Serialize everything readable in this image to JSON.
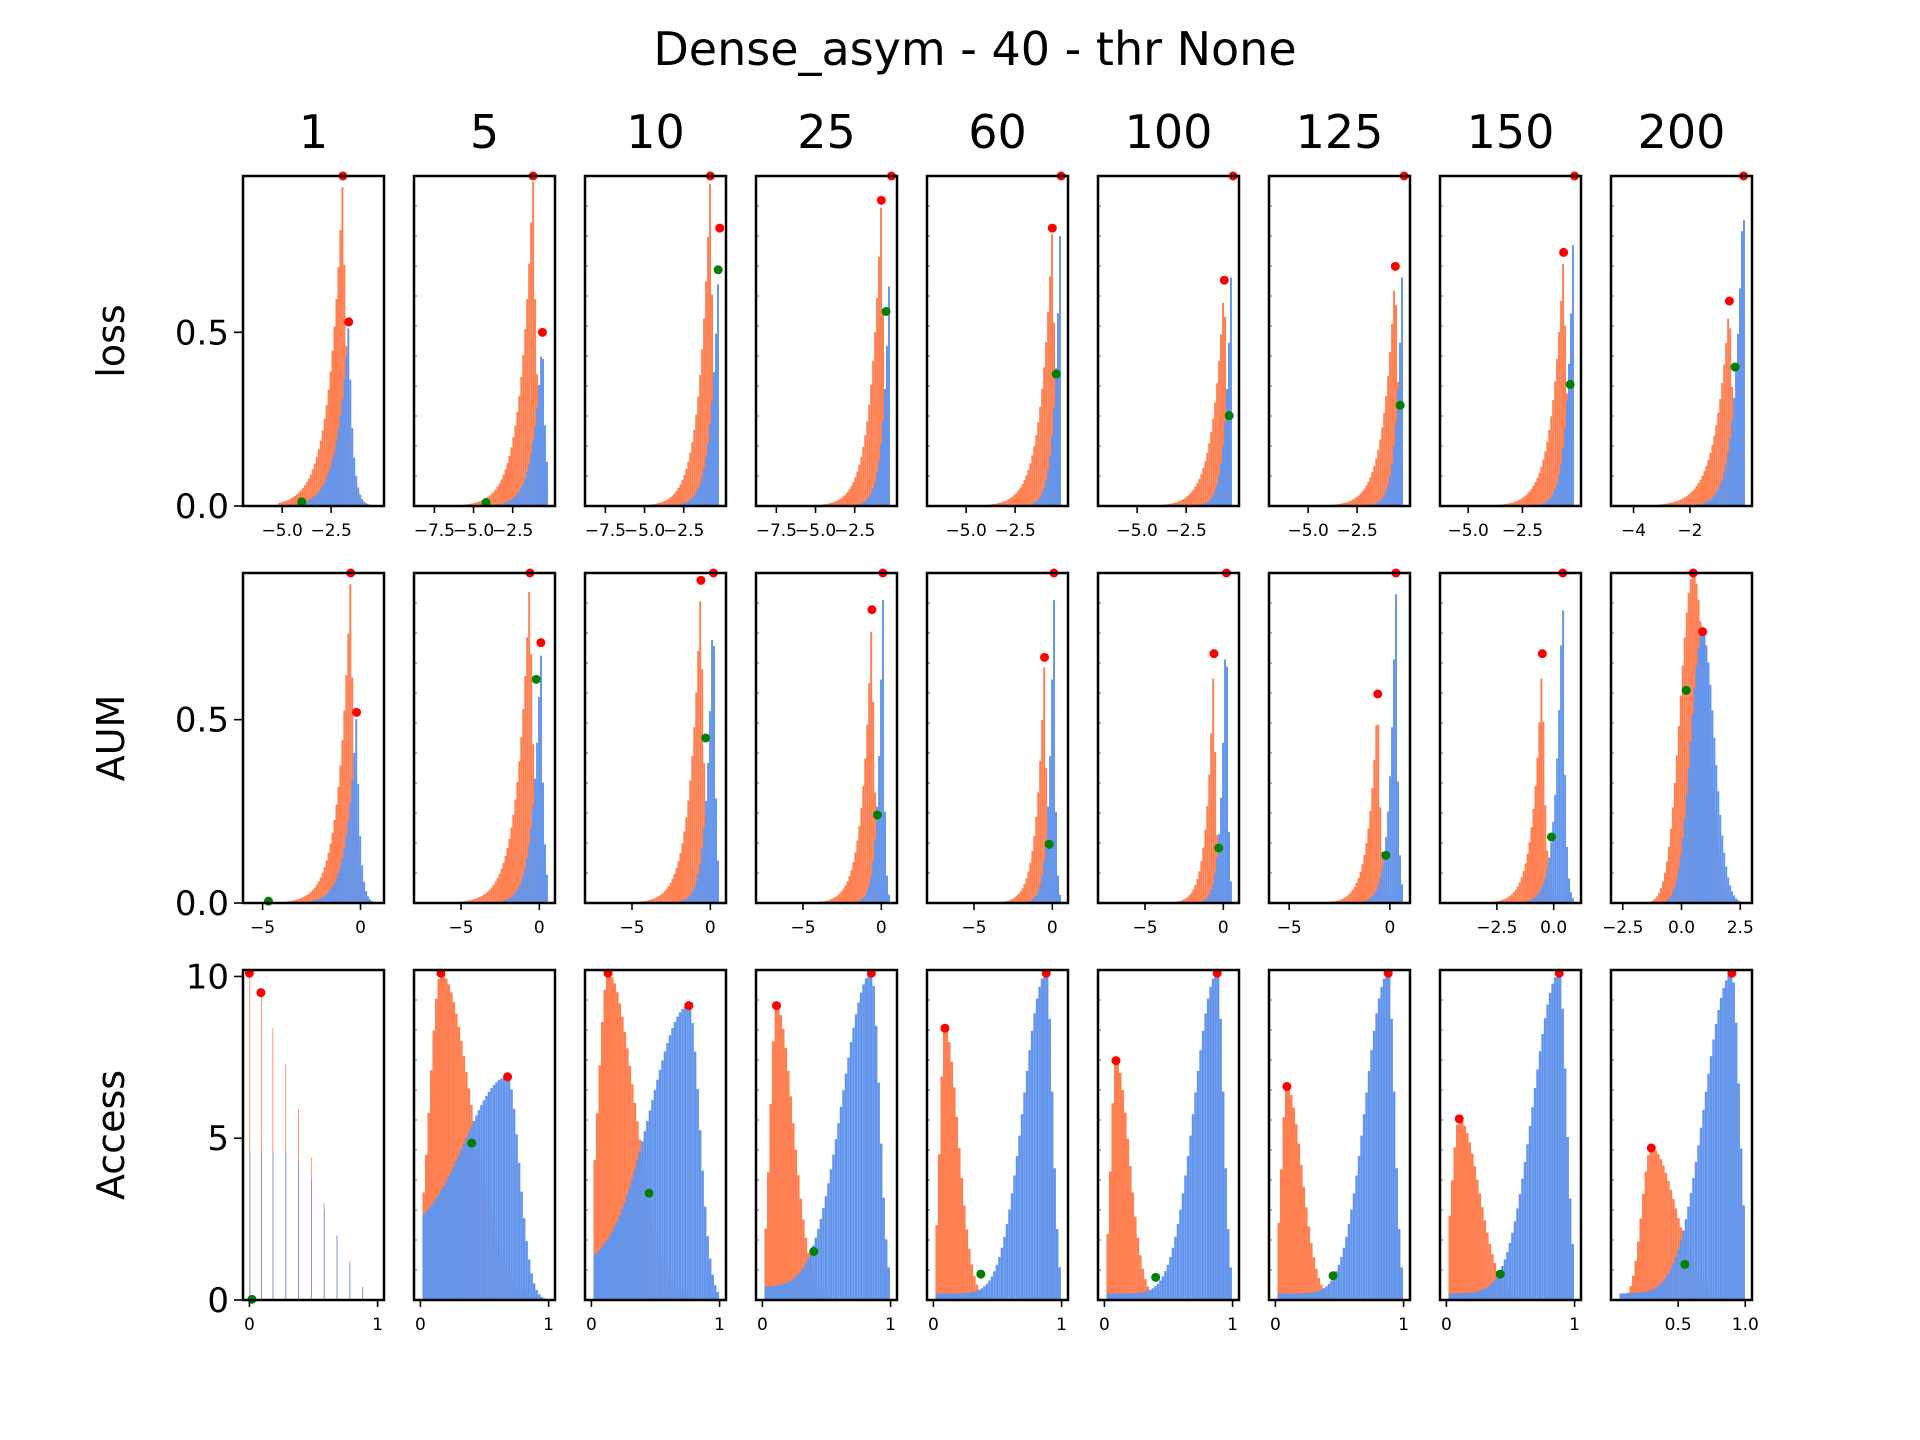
{
  "colors": {
    "orange": "#ff7f50",
    "blue": "#6495ed",
    "peak_marker": "#ff0000",
    "cross_marker": "#008000"
  },
  "chart_data": {
    "type": "histogram-grid",
    "title": "Dense_asym - 40 - thr None",
    "columns": [
      "1",
      "5",
      "10",
      "25",
      "60",
      "100",
      "125",
      "150",
      "200"
    ],
    "rows": [
      {
        "label": "loss",
        "y_ticks": [
          "0.0",
          "0.5"
        ],
        "ylim": [
          0,
          0.95
        ],
        "cells": [
          {
            "xlim": [
              -7.0,
              0.2
            ],
            "xticks": [
              -5.0,
              -2.5
            ],
            "xtick_labels": [
              "−5.0",
              "−2.5"
            ],
            "shape": "sharp",
            "o_peak": [
              -1.9,
              0.95
            ],
            "o_sd": 0.7,
            "b_peak": [
              -1.6,
              0.53
            ],
            "b_sd": 0.6,
            "cross": [
              -4.0,
              0.012
            ]
          },
          {
            "xlim": [
              -8.8,
              0.2
            ],
            "xticks": [
              -7.5,
              -5.0,
              -2.5
            ],
            "xtick_labels": [
              "−7.5",
              "−5.0",
              "−2.5"
            ],
            "shape": "sharp",
            "o_peak": [
              -1.2,
              0.95
            ],
            "o_sd": 0.8,
            "b_peak": [
              -0.6,
              0.5
            ],
            "b_sd": 0.6,
            "cross": [
              -4.2,
              0.01
            ]
          },
          {
            "xlim": [
              -8.8,
              0.2
            ],
            "xticks": [
              -7.5,
              -5.0,
              -2.5
            ],
            "xtick_labels": [
              "−7.5",
              "−5.0",
              "−2.5"
            ],
            "shape": "sharp",
            "o_peak": [
              -0.8,
              0.95
            ],
            "o_sd": 0.7,
            "b_peak": [
              -0.2,
              0.8
            ],
            "b_sd": 0.5,
            "cross": [
              -0.3,
              0.68
            ]
          },
          {
            "xlim": [
              -8.8,
              0.2
            ],
            "xticks": [
              -7.5,
              -5.0,
              -2.5
            ],
            "xtick_labels": [
              "−7.5",
              "−5.0",
              "−2.5"
            ],
            "shape": "sharp",
            "o_peak": [
              -0.8,
              0.88
            ],
            "o_sd": 0.7,
            "b_peak": [
              -0.15,
              0.95
            ],
            "b_sd": 0.4,
            "cross": [
              -0.5,
              0.56
            ]
          },
          {
            "xlim": [
              -7.0,
              0.2
            ],
            "xticks": [
              -5.0,
              -2.5
            ],
            "xtick_labels": [
              "−5.0",
              "−2.5"
            ],
            "shape": "sharp",
            "o_peak": [
              -0.6,
              0.8
            ],
            "o_sd": 0.6,
            "b_peak": [
              -0.15,
              0.95
            ],
            "b_sd": 0.3,
            "cross": [
              -0.4,
              0.38
            ]
          },
          {
            "xlim": [
              -7.0,
              0.2
            ],
            "xticks": [
              -5.0,
              -2.5
            ],
            "xtick_labels": [
              "−5.0",
              "−2.5"
            ],
            "shape": "sharp",
            "o_peak": [
              -0.55,
              0.65
            ],
            "o_sd": 0.6,
            "b_peak": [
              -0.1,
              0.95
            ],
            "b_sd": 0.3,
            "cross": [
              -0.3,
              0.26
            ]
          },
          {
            "xlim": [
              -7.0,
              0.2
            ],
            "xticks": [
              -5.0,
              -2.5
            ],
            "xtick_labels": [
              "−5.0",
              "−2.5"
            ],
            "shape": "sharp",
            "o_peak": [
              -0.55,
              0.69
            ],
            "o_sd": 0.6,
            "b_peak": [
              -0.1,
              0.95
            ],
            "b_sd": 0.3,
            "cross": [
              -0.3,
              0.29
            ]
          },
          {
            "xlim": [
              -6.3,
              0.2
            ],
            "xticks": [
              -5.0,
              -2.5
            ],
            "xtick_labels": [
              "−5.0",
              "−2.5"
            ],
            "shape": "sharp",
            "o_peak": [
              -0.6,
              0.73
            ],
            "o_sd": 0.55,
            "b_peak": [
              -0.1,
              0.95
            ],
            "b_sd": 0.3,
            "cross": [
              -0.3,
              0.35
            ]
          },
          {
            "xlim": [
              -4.8,
              0.2
            ],
            "xticks": [
              -4,
              -2
            ],
            "xtick_labels": [
              "−4",
              "−2"
            ],
            "shape": "sharp",
            "o_peak": [
              -0.6,
              0.59
            ],
            "o_sd": 0.5,
            "b_peak": [
              -0.1,
              0.95
            ],
            "b_sd": 0.3,
            "cross": [
              -0.4,
              0.4
            ]
          }
        ]
      },
      {
        "label": "AUM",
        "y_ticks": [
          "0.0",
          "0.5"
        ],
        "ylim": [
          0,
          0.9
        ],
        "cells": [
          {
            "xlim": [
              -6.0,
              1.2
            ],
            "xticks": [
              -5,
              0
            ],
            "xtick_labels": [
              "−5",
              "0"
            ],
            "shape": "sharp",
            "o_peak": [
              -0.5,
              0.9
            ],
            "o_sd": 0.6,
            "b_peak": [
              -0.2,
              0.52
            ],
            "b_sd": 0.5,
            "cross": [
              -4.7,
              0.005
            ]
          },
          {
            "xlim": [
              -8.0,
              1.0
            ],
            "xticks": [
              -5,
              0
            ],
            "xtick_labels": [
              "−5",
              "0"
            ],
            "shape": "sharp",
            "o_peak": [
              -0.6,
              0.9
            ],
            "o_sd": 0.8,
            "b_peak": [
              0.1,
              0.71
            ],
            "b_sd": 0.5,
            "cross": [
              -0.2,
              0.61
            ]
          },
          {
            "xlim": [
              -8.0,
              1.0
            ],
            "xticks": [
              -5,
              0
            ],
            "xtick_labels": [
              "−5",
              "0"
            ],
            "shape": "sharp",
            "o_peak": [
              -0.6,
              0.88
            ],
            "o_sd": 0.7,
            "b_peak": [
              0.2,
              0.9
            ],
            "b_sd": 0.4,
            "cross": [
              -0.3,
              0.45
            ]
          },
          {
            "xlim": [
              -8.0,
              1.0
            ],
            "xticks": [
              -5,
              0
            ],
            "xtick_labels": [
              "−5",
              "0"
            ],
            "shape": "sharp",
            "o_peak": [
              -0.6,
              0.8
            ],
            "o_sd": 0.6,
            "b_peak": [
              0.1,
              0.9
            ],
            "b_sd": 0.3,
            "cross": [
              -0.25,
              0.24
            ]
          },
          {
            "xlim": [
              -8.0,
              1.0
            ],
            "xticks": [
              -5,
              0
            ],
            "xtick_labels": [
              "−5",
              "0"
            ],
            "shape": "sharp",
            "o_peak": [
              -0.5,
              0.67
            ],
            "o_sd": 0.5,
            "b_peak": [
              0.1,
              0.9
            ],
            "b_sd": 0.3,
            "cross": [
              -0.2,
              0.16
            ]
          },
          {
            "xlim": [
              -8.0,
              1.0
            ],
            "xticks": [
              -5,
              0
            ],
            "xtick_labels": [
              "−5",
              "0"
            ],
            "shape": "sharp",
            "o_peak": [
              -0.6,
              0.68
            ],
            "o_sd": 0.45,
            "b_peak": [
              0.2,
              0.9
            ],
            "b_sd": 0.3,
            "cross": [
              -0.3,
              0.15
            ]
          },
          {
            "xlim": [
              -6.0,
              1.0
            ],
            "xticks": [
              -5,
              0
            ],
            "xtick_labels": [
              "−5",
              "0"
            ],
            "shape": "sharp",
            "o_peak": [
              -0.6,
              0.57
            ],
            "o_sd": 0.45,
            "b_peak": [
              0.3,
              0.9
            ],
            "b_sd": 0.3,
            "cross": [
              -0.2,
              0.13
            ]
          },
          {
            "xlim": [
              -5.0,
              1.2
            ],
            "xticks": [
              -2.5,
              0.0
            ],
            "xtick_labels": [
              "−2.5",
              "0.0"
            ],
            "shape": "sharp",
            "o_peak": [
              -0.5,
              0.68
            ],
            "o_sd": 0.4,
            "b_peak": [
              0.4,
              0.9
            ],
            "b_sd": 0.3,
            "cross": [
              -0.1,
              0.18
            ]
          },
          {
            "xlim": [
              -3.0,
              3.0
            ],
            "xticks": [
              -2.5,
              0.0,
              2.5
            ],
            "xtick_labels": [
              "−2.5",
              "0.0",
              "2.5"
            ],
            "shape": "gauss",
            "o_peak": [
              0.5,
              0.9
            ],
            "o_sd": 0.55,
            "b_peak": [
              0.9,
              0.74
            ],
            "b_sd": 0.5,
            "cross": [
              0.2,
              0.58
            ]
          }
        ]
      },
      {
        "label": "Access",
        "y_ticks": [
          "0",
          "5",
          "10"
        ],
        "y_tick_values": [
          0,
          5,
          10
        ],
        "ylim": [
          0,
          10.2
        ],
        "cells": [
          {
            "xlim": [
              -0.05,
              1.05
            ],
            "xticks": [
              0,
              1
            ],
            "xtick_labels": [
              "0",
              "1"
            ],
            "shape": "discrete",
            "o_bars": [
              [
                0.0,
                10.1
              ],
              [
                0.09,
                9.5
              ],
              [
                0.18,
                8.4
              ],
              [
                0.28,
                7.3
              ],
              [
                0.38,
                5.9
              ],
              [
                0.48,
                4.4
              ],
              [
                0.58,
                3.0
              ],
              [
                0.68,
                2.0
              ],
              [
                0.78,
                1.2
              ],
              [
                0.88,
                0.4
              ]
            ],
            "b_bars": [
              [
                0.0,
                4.6
              ],
              [
                0.09,
                4.6
              ],
              [
                0.18,
                4.6
              ],
              [
                0.28,
                4.6
              ],
              [
                0.38,
                4.3
              ],
              [
                0.48,
                3.7
              ],
              [
                0.58,
                2.8
              ],
              [
                0.68,
                2.0
              ],
              [
                0.78,
                1.1
              ],
              [
                0.88,
                0.4
              ]
            ],
            "peaks": [
              [
                0.0,
                10.1
              ],
              [
                0.09,
                9.5
              ]
            ],
            "cross": [
              0.02,
              0.02
            ]
          },
          {
            "xlim": [
              -0.05,
              1.05
            ],
            "xticks": [
              0,
              1
            ],
            "xtick_labels": [
              "0",
              "1"
            ],
            "shape": "bimodal",
            "o_peak": [
              0.16,
              10.1
            ],
            "o_sd": 0.09,
            "b_peak": [
              0.68,
              6.9
            ],
            "b_sd": 0.13,
            "b_floor": 2.0,
            "cross": [
              0.4,
              4.85
            ]
          },
          {
            "xlim": [
              -0.05,
              1.05
            ],
            "xticks": [
              0,
              1
            ],
            "xtick_labels": [
              "0",
              "1"
            ],
            "shape": "bimodal",
            "o_peak": [
              0.13,
              10.1
            ],
            "o_sd": 0.08,
            "b_peak": [
              0.76,
              9.1
            ],
            "b_sd": 0.12,
            "b_floor": 1.0,
            "cross": [
              0.45,
              3.3
            ]
          },
          {
            "xlim": [
              -0.05,
              1.05
            ],
            "xticks": [
              0,
              1
            ],
            "xtick_labels": [
              "0",
              "1"
            ],
            "shape": "bimodal",
            "o_peak": [
              0.11,
              9.1
            ],
            "o_sd": 0.05,
            "b_peak": [
              0.85,
              10.1
            ],
            "b_sd": 0.09,
            "b_floor": 0.4,
            "cross": [
              0.4,
              1.5
            ]
          },
          {
            "xlim": [
              -0.05,
              1.05
            ],
            "xticks": [
              0,
              1
            ],
            "xtick_labels": [
              "0",
              "1"
            ],
            "shape": "bimodal",
            "o_peak": [
              0.09,
              8.4
            ],
            "o_sd": 0.04,
            "b_peak": [
              0.88,
              10.1
            ],
            "b_sd": 0.07,
            "b_floor": 0.2,
            "cross": [
              0.37,
              0.8
            ]
          },
          {
            "xlim": [
              -0.05,
              1.05
            ],
            "xticks": [
              0,
              1
            ],
            "xtick_labels": [
              "0",
              "1"
            ],
            "shape": "bimodal",
            "o_peak": [
              0.09,
              7.4
            ],
            "o_sd": 0.04,
            "b_peak": [
              0.88,
              10.1
            ],
            "b_sd": 0.07,
            "b_floor": 0.2,
            "cross": [
              0.4,
              0.7
            ]
          },
          {
            "xlim": [
              -0.05,
              1.05
            ],
            "xticks": [
              0,
              1
            ],
            "xtick_labels": [
              "0",
              "1"
            ],
            "shape": "bimodal",
            "o_peak": [
              0.09,
              6.6
            ],
            "o_sd": 0.045,
            "b_peak": [
              0.88,
              10.1
            ],
            "b_sd": 0.07,
            "b_floor": 0.2,
            "cross": [
              0.45,
              0.75
            ]
          },
          {
            "xlim": [
              -0.05,
              1.05
            ],
            "xticks": [
              0,
              1
            ],
            "xtick_labels": [
              "0",
              "1"
            ],
            "shape": "bimodal",
            "o_peak": [
              0.1,
              5.6
            ],
            "o_sd": 0.06,
            "b_peak": [
              0.88,
              10.1
            ],
            "b_sd": 0.08,
            "b_floor": 0.2,
            "cross": [
              0.42,
              0.8
            ]
          },
          {
            "xlim": [
              0.0,
              1.05
            ],
            "xticks": [
              0.5,
              1.0
            ],
            "xtick_labels": [
              "0.5",
              "1.0"
            ],
            "shape": "bimodal",
            "o_peak": [
              0.3,
              4.7
            ],
            "o_sd": 0.07,
            "b_peak": [
              0.9,
              10.1
            ],
            "b_sd": 0.08,
            "b_floor": 0.2,
            "cross": [
              0.55,
              1.1
            ]
          }
        ]
      }
    ]
  }
}
